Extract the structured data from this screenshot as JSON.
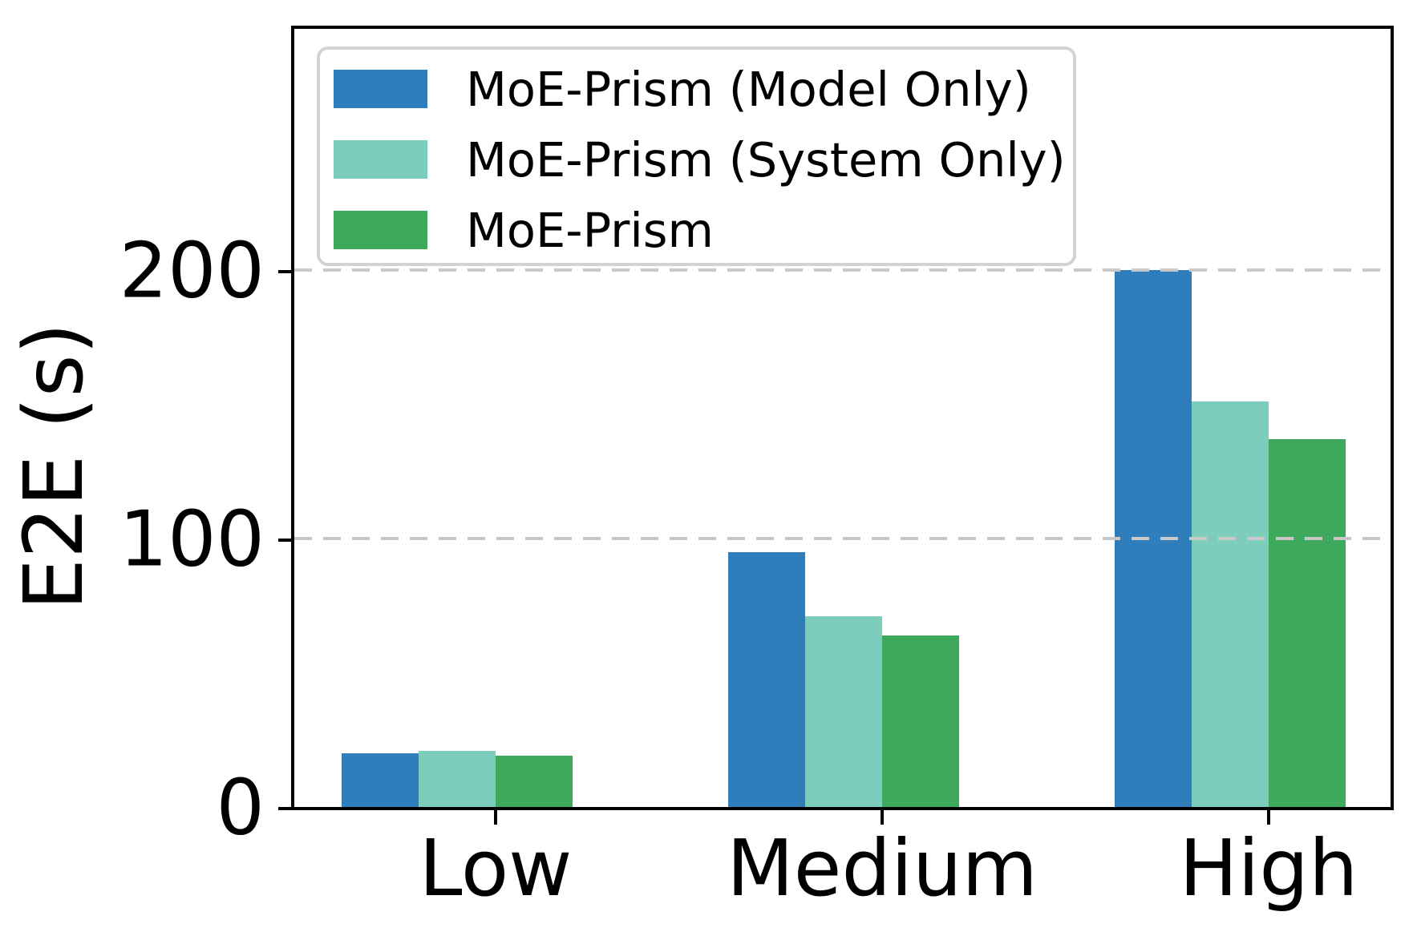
{
  "figure": {
    "background": "#ffffff"
  },
  "chart_data": {
    "type": "bar",
    "categories": [
      "Low",
      "Medium",
      "High"
    ],
    "series": [
      {
        "name": "MoE-Prism (Model Only)",
        "color": "#2F7EBB",
        "values": [
          20,
          95,
          200
        ]
      },
      {
        "name": "MoE-Prism (System Only)",
        "color": "#7DCDBC",
        "values": [
          21,
          71,
          151
        ]
      },
      {
        "name": "MoE-Prism",
        "color": "#3EA95C",
        "values": [
          19,
          64,
          137
        ]
      }
    ],
    "title": "",
    "xlabel": "",
    "ylabel": "E2E (s)",
    "yticks": [
      0,
      100,
      200
    ],
    "ylim": [
      0,
      290
    ],
    "grid": {
      "axis": "y",
      "style": "dashed",
      "color": "#c8c8c8"
    },
    "legend": {
      "position": "upper left",
      "border_color": "#d3d3d3"
    }
  }
}
